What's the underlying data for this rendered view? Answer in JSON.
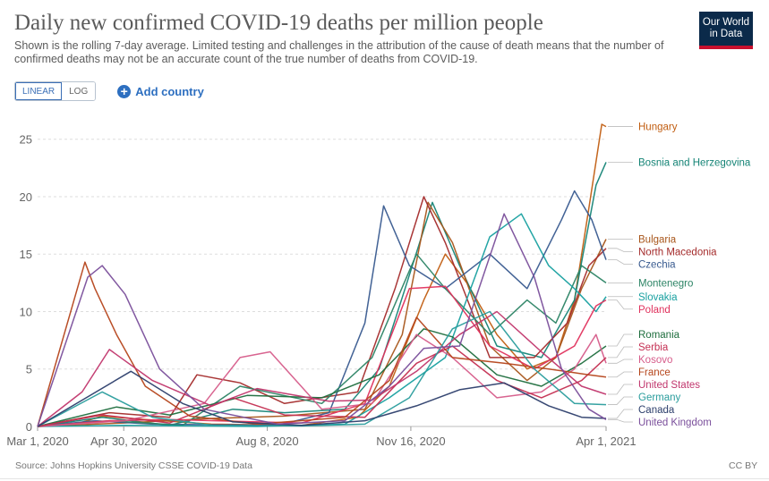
{
  "header": {
    "title": "Daily new confirmed COVID-19 deaths per million people",
    "subtitle": "Shown is the rolling 7-day average. Limited testing and challenges in the attribution of the cause of death means that the number of confirmed deaths may not be an accurate count of the true number of deaths from COVID-19.",
    "logo_line1": "Our World",
    "logo_line2": "in Data"
  },
  "controls": {
    "linear_label": "LINEAR",
    "log_label": "LOG",
    "add_country_label": "Add country"
  },
  "footer": {
    "source": "Source: Johns Hopkins University CSSE COVID-19 Data",
    "license": "CC BY"
  },
  "chart_data": {
    "type": "line",
    "title": "Daily new confirmed COVID-19 deaths per million people",
    "subtitle": "Shown is the rolling 7-day average. Limited testing and challenges in the attribution of the cause of death means that the number of confirmed deaths may not be an accurate count of the true number of deaths from COVID-19.",
    "x_start": "2020-03-01",
    "x_end": "2021-04-01",
    "x_tick_labels": [
      "Mar 1, 2020",
      "Apr 30, 2020",
      "Aug 8, 2020",
      "Nov 16, 2020",
      "Apr 1, 2021"
    ],
    "x_ticks": [
      "2020-03-01",
      "2020-04-30",
      "2020-08-08",
      "2020-11-16",
      "2021-04-01"
    ],
    "ylim": [
      0,
      27
    ],
    "y_ticks": [
      0,
      5,
      10,
      15,
      20,
      25
    ],
    "y_scale": "linear",
    "grid": "horizontal dashed",
    "legend": "right, labels at line ends",
    "series": [
      {
        "name": "Hungary",
        "color": "#c15e12",
        "x": [
          "2020-03-01",
          "2020-03-25",
          "2020-04-15",
          "2020-05-15",
          "2020-06-30",
          "2020-09-01",
          "2020-10-10",
          "2020-11-01",
          "2020-11-25",
          "2020-12-10",
          "2020-12-25",
          "2021-01-15",
          "2021-02-05",
          "2021-02-25",
          "2021-03-10",
          "2021-03-20",
          "2021-03-29",
          "2021-04-01"
        ],
        "values": [
          0,
          0.1,
          0.9,
          0.6,
          0.2,
          0.1,
          0.8,
          3.5,
          11,
          15,
          12.5,
          8,
          5,
          6,
          11,
          19,
          26.3,
          26.1
        ]
      },
      {
        "name": "Bosnia and Herzegovina",
        "color": "#158476",
        "x": [
          "2020-03-01",
          "2020-04-15",
          "2020-06-01",
          "2020-07-15",
          "2020-08-20",
          "2020-10-01",
          "2020-10-25",
          "2020-11-12",
          "2020-12-01",
          "2020-12-20",
          "2021-01-15",
          "2021-02-15",
          "2021-03-10",
          "2021-03-25",
          "2021-04-01"
        ],
        "values": [
          0,
          0.8,
          0.1,
          1.5,
          1.2,
          1.5,
          5,
          12,
          19.5,
          14,
          7,
          6,
          11,
          21,
          23
        ]
      },
      {
        "name": "Bulgaria",
        "color": "#a8561b",
        "x": [
          "2020-03-01",
          "2020-04-30",
          "2020-07-01",
          "2020-08-20",
          "2020-10-15",
          "2020-11-10",
          "2020-11-28",
          "2020-12-15",
          "2021-01-10",
          "2021-02-05",
          "2021-02-25",
          "2021-03-15",
          "2021-04-01"
        ],
        "values": [
          0,
          0.3,
          0.7,
          0.9,
          1.5,
          8,
          19.5,
          16,
          7,
          4,
          6,
          12,
          16.3
        ]
      },
      {
        "name": "North Macedonia",
        "color": "#a42b2b",
        "x": [
          "2020-03-01",
          "2020-04-20",
          "2020-06-01",
          "2020-06-20",
          "2020-07-20",
          "2020-08-20",
          "2020-10-10",
          "2020-11-05",
          "2020-11-25",
          "2020-12-10",
          "2021-01-10",
          "2021-02-10",
          "2021-03-05",
          "2021-03-20",
          "2021-04-01"
        ],
        "values": [
          0,
          1.2,
          0.8,
          4.5,
          3.8,
          2,
          3,
          12,
          20,
          16,
          6,
          6,
          9,
          14,
          15.5
        ]
      },
      {
        "name": "Czechia",
        "color": "#385a8f",
        "x": [
          "2020-03-01",
          "2020-04-10",
          "2020-05-20",
          "2020-08-15",
          "2020-09-20",
          "2020-10-15",
          "2020-10-28",
          "2020-11-15",
          "2020-12-10",
          "2021-01-10",
          "2021-02-05",
          "2021-03-01",
          "2021-03-10",
          "2021-03-22",
          "2021-04-01"
        ],
        "values": [
          0,
          0.5,
          0.2,
          0.1,
          1.2,
          9,
          19.2,
          14,
          12,
          15,
          12,
          18,
          20.5,
          18,
          14.5
        ]
      },
      {
        "name": "Montenegro",
        "color": "#2c8465",
        "x": [
          "2020-03-01",
          "2020-04-20",
          "2020-06-10",
          "2020-07-20",
          "2020-09-15",
          "2020-10-20",
          "2020-11-20",
          "2020-12-10",
          "2021-01-10",
          "2021-02-05",
          "2021-02-25",
          "2021-03-15",
          "2021-04-01"
        ],
        "values": [
          0,
          0.5,
          0.1,
          3.5,
          2,
          6,
          15,
          12,
          8,
          11,
          9,
          14,
          12.5
        ]
      },
      {
        "name": "Slovakia",
        "color": "#18a0a0",
        "x": [
          "2020-03-01",
          "2020-05-01",
          "2020-08-01",
          "2020-10-01",
          "2020-11-01",
          "2020-12-10",
          "2021-01-10",
          "2021-02-01",
          "2021-02-20",
          "2021-03-10",
          "2021-03-25",
          "2021-04-01"
        ],
        "values": [
          0,
          0.1,
          0,
          0.2,
          2.5,
          6,
          16.5,
          18.5,
          14,
          12,
          10,
          11.3
        ]
      },
      {
        "name": "Poland",
        "color": "#e0325d",
        "x": [
          "2020-03-01",
          "2020-04-20",
          "2020-06-01",
          "2020-09-01",
          "2020-10-15",
          "2020-11-15",
          "2020-12-10",
          "2021-01-10",
          "2021-02-10",
          "2021-03-10",
          "2021-03-25",
          "2021-04-01"
        ],
        "values": [
          0,
          0.5,
          0.6,
          0.3,
          2,
          12,
          12.2,
          7,
          5,
          7,
          10.5,
          11
        ]
      },
      {
        "name": "Romania",
        "color": "#1f6e3e",
        "x": [
          "2020-03-01",
          "2020-04-25",
          "2020-06-01",
          "2020-07-25",
          "2020-09-15",
          "2020-10-25",
          "2020-11-25",
          "2020-12-15",
          "2021-01-15",
          "2021-02-15",
          "2021-03-15",
          "2021-04-01"
        ],
        "values": [
          0,
          1.7,
          1,
          2.7,
          2.5,
          4.5,
          8.5,
          7.8,
          4.5,
          3.5,
          5.5,
          7
        ]
      },
      {
        "name": "Kosovo",
        "color": "#d65c8a",
        "x": [
          "2020-03-01",
          "2020-05-01",
          "2020-06-25",
          "2020-07-20",
          "2020-08-10",
          "2020-09-15",
          "2020-10-20",
          "2020-11-20",
          "2020-12-15",
          "2021-01-15",
          "2021-02-15",
          "2021-03-10",
          "2021-03-25",
          "2021-04-01"
        ],
        "values": [
          0,
          0.5,
          2,
          6,
          6.5,
          1.5,
          2,
          8,
          6,
          2.5,
          3,
          5,
          8,
          5.5
        ]
      },
      {
        "name": "Serbia",
        "color": "#c42f52",
        "x": [
          "2020-03-01",
          "2020-04-15",
          "2020-06-01",
          "2020-07-15",
          "2020-08-20",
          "2020-10-15",
          "2020-11-20",
          "2020-12-15",
          "2021-01-15",
          "2021-02-15",
          "2021-03-15",
          "2021-04-01"
        ],
        "values": [
          0,
          1,
          0.3,
          2.5,
          1,
          0.8,
          5.5,
          7,
          4,
          2.5,
          4,
          6
        ]
      },
      {
        "name": "France",
        "color": "#b5451b",
        "x": [
          "2020-03-01",
          "2020-04-03",
          "2020-04-10",
          "2020-04-25",
          "2020-05-15",
          "2020-06-15",
          "2020-08-01",
          "2020-10-01",
          "2020-11-01",
          "2020-11-20",
          "2020-12-15",
          "2021-01-20",
          "2021-02-20",
          "2021-03-20",
          "2021-04-01"
        ],
        "values": [
          0,
          14.3,
          12,
          8,
          3.5,
          0.9,
          0.2,
          0.8,
          4,
          9.5,
          6,
          5.5,
          5,
          4.5,
          4.3
        ]
      },
      {
        "name": "United States",
        "color": "#c1366d",
        "x": [
          "2020-03-01",
          "2020-04-01",
          "2020-04-20",
          "2020-05-20",
          "2020-06-30",
          "2020-08-01",
          "2020-09-20",
          "2020-10-20",
          "2020-11-20",
          "2020-12-20",
          "2021-01-15",
          "2021-02-15",
          "2021-03-15",
          "2021-04-01"
        ],
        "values": [
          0,
          3,
          6.7,
          4,
          1.8,
          3.3,
          2.2,
          2.3,
          4.8,
          8,
          10,
          6.5,
          3.5,
          2.8
        ]
      },
      {
        "name": "Germany",
        "color": "#2a9d9d",
        "x": [
          "2020-03-01",
          "2020-04-15",
          "2020-05-20",
          "2020-07-01",
          "2020-09-01",
          "2020-10-15",
          "2020-11-15",
          "2020-12-15",
          "2021-01-10",
          "2021-02-10",
          "2021-03-10",
          "2021-04-01"
        ],
        "values": [
          0,
          3,
          0.8,
          0.1,
          0.05,
          0.2,
          2.5,
          8.5,
          10,
          5,
          2,
          1.9
        ]
      },
      {
        "name": "Canada",
        "color": "#2c3e6b",
        "x": [
          "2020-03-01",
          "2020-05-05",
          "2020-06-10",
          "2020-07-15",
          "2020-09-01",
          "2020-10-15",
          "2020-11-20",
          "2020-12-20",
          "2021-01-20",
          "2021-02-20",
          "2021-03-15",
          "2021-04-01"
        ],
        "values": [
          0,
          4.8,
          2,
          0.4,
          0.1,
          0.5,
          1.8,
          3.2,
          3.8,
          1.8,
          0.8,
          0.7
        ]
      },
      {
        "name": "United Kingdom",
        "color": "#7a4f9b",
        "x": [
          "2020-03-01",
          "2020-04-05",
          "2020-04-15",
          "2020-05-01",
          "2020-05-25",
          "2020-06-25",
          "2020-08-15",
          "2020-10-01",
          "2020-11-01",
          "2020-11-25",
          "2020-12-20",
          "2021-01-20",
          "2021-02-10",
          "2021-03-01",
          "2021-03-20",
          "2021-04-01"
        ],
        "values": [
          0,
          13,
          14,
          11.5,
          5,
          1.5,
          0.2,
          0.5,
          3.5,
          6.8,
          7,
          18.5,
          13,
          5,
          1.5,
          0.6
        ]
      }
    ]
  }
}
